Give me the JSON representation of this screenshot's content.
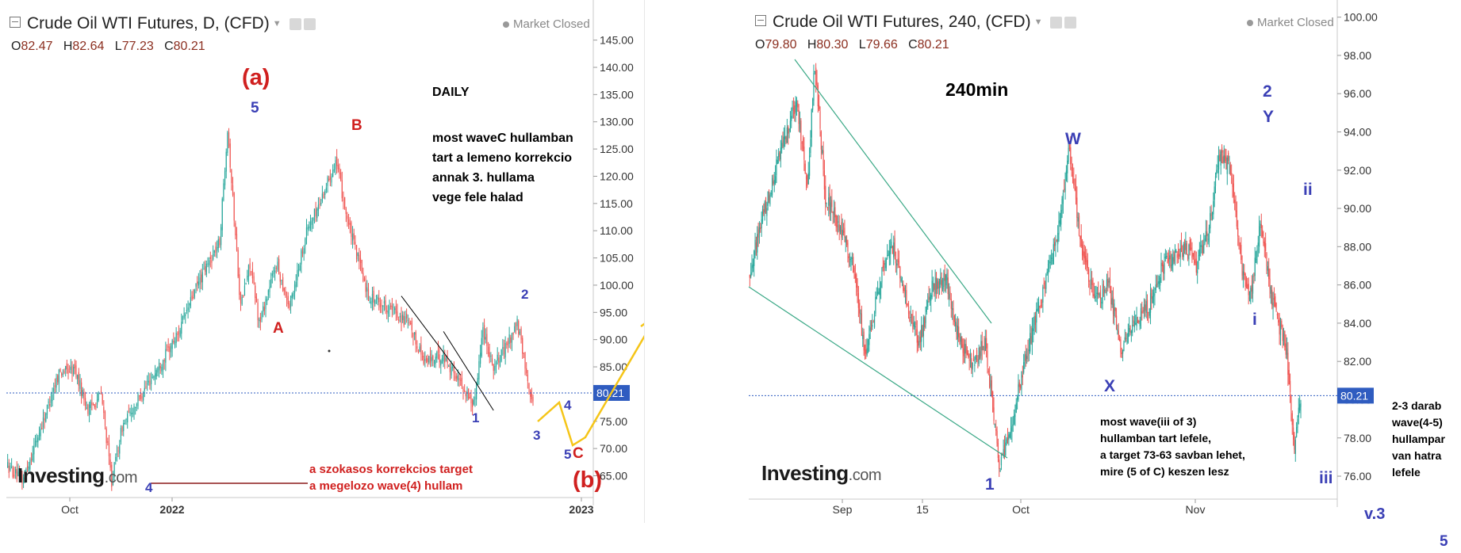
{
  "left": {
    "title": "Crude Oil WTI Futures, D, (CFD)",
    "status": "Market Closed",
    "ohlc": {
      "o_label": "O",
      "o": "82.47",
      "h_label": "H",
      "h": "82.64",
      "l_label": "L",
      "l": "77.23",
      "c_label": "C",
      "c": "80.21"
    },
    "last_price": "80.21",
    "logo": {
      "main": "Investing",
      "suffix": ".com"
    },
    "note_title": "DAILY",
    "note_lines": [
      "most waveC hullamban",
      "tart a lemeno korrekcio",
      "annak 3. hullama",
      "vege fele halad"
    ],
    "target_lines": [
      "a szokasos korrekcios target",
      "a megelozo wave(4) hullam"
    ],
    "labels": {
      "a": "(a)",
      "b": "(b)",
      "w5": "5",
      "B": "B",
      "A": "A",
      "w2": "2",
      "w1": "1",
      "w3": "3",
      "w4": "4",
      "w5c": "5",
      "C": "C",
      "w4low": "4"
    }
  },
  "right": {
    "title": "Crude Oil WTI Futures, 240, (CFD)",
    "status": "Market Closed",
    "ohlc": {
      "o_label": "O",
      "o": "79.80",
      "h_label": "H",
      "h": "80.30",
      "l_label": "L",
      "l": "79.66",
      "c_label": "C",
      "c": "80.21"
    },
    "last_price": "80.21",
    "logo": {
      "main": "Investing",
      "suffix": ".com"
    },
    "timeframe": "240min",
    "note_lines": [
      "most wave(iii of 3)",
      "hullamban tart lefele,",
      "a target 73-63 savban lehet,",
      "mire (5 of C) keszen lesz"
    ],
    "side_note": [
      "2-3 darab",
      "wave(4-5)",
      "hullampar",
      "van hatra",
      "lefele"
    ],
    "labels": {
      "W": "W",
      "X": "X",
      "Y": "Y",
      "w1": "1",
      "w2": "2",
      "ii": "ii",
      "i": "i",
      "iii": "iii"
    },
    "version": "v.3"
  },
  "page_number": "5",
  "colors": {
    "up": "#26a69a",
    "down": "#ef5350",
    "wave_red": "#d0201f",
    "wave_blue": "#3a3fb5",
    "projection": "#f5c518",
    "trend_green": "#3aa886",
    "price_line": "#2f5cc0",
    "price_box": "#2f5cc0"
  },
  "chart_data": [
    {
      "type": "candlestick",
      "title": "Crude Oil WTI Futures, D, (CFD)",
      "ylim": [
        61,
        148
      ],
      "yticks": [
        "145.00",
        "140.00",
        "135.00",
        "130.00",
        "125.00",
        "120.00",
        "115.00",
        "110.00",
        "105.00",
        "100.00",
        "95.00",
        "90.00",
        "85.00",
        "80.00",
        "75.00",
        "70.00",
        "65.00"
      ],
      "yvals": [
        145,
        140,
        135,
        130,
        125,
        120,
        115,
        110,
        105,
        100,
        95,
        90,
        85,
        80,
        75,
        70,
        65
      ],
      "xticks": [
        "Oct",
        "2022",
        "2023"
      ],
      "last": 80.21,
      "waypoints": [
        [
          0,
          67
        ],
        [
          12,
          64
        ],
        [
          25,
          73
        ],
        [
          40,
          84
        ],
        [
          52,
          84.5
        ],
        [
          62,
          77
        ],
        [
          72,
          80
        ],
        [
          80,
          64
        ],
        [
          88,
          74
        ],
        [
          100,
          79
        ],
        [
          118,
          86
        ],
        [
          130,
          91
        ],
        [
          145,
          100
        ],
        [
          162,
          108
        ],
        [
          168,
          129
        ],
        [
          178,
          96
        ],
        [
          185,
          104
        ],
        [
          192,
          93
        ],
        [
          205,
          104
        ],
        [
          215,
          96
        ],
        [
          228,
          110
        ],
        [
          238,
          115
        ],
        [
          250,
          123
        ],
        [
          260,
          111
        ],
        [
          275,
          98
        ],
        [
          290,
          96
        ],
        [
          305,
          93
        ],
        [
          318,
          86
        ],
        [
          332,
          87
        ],
        [
          345,
          82
        ],
        [
          355,
          78
        ],
        [
          362,
          92
        ],
        [
          370,
          85
        ],
        [
          378,
          88
        ],
        [
          388,
          93
        ],
        [
          395,
          84
        ],
        [
          400,
          78
        ]
      ]
    },
    {
      "type": "candlestick",
      "title": "Crude Oil WTI Futures, 240, (CFD)",
      "ylim": [
        74.8,
        100.4
      ],
      "yticks": [
        "100.00",
        "98.00",
        "96.00",
        "94.00",
        "92.00",
        "90.00",
        "88.00",
        "86.00",
        "84.00",
        "82.00",
        "80.00",
        "78.00",
        "76.00"
      ],
      "yvals": [
        100,
        98,
        96,
        94,
        92,
        90,
        88,
        86,
        84,
        82,
        80,
        78,
        76
      ],
      "xticks": [
        "Sep",
        "15",
        "Oct",
        "Nov"
      ],
      "last": 80.21,
      "waypoints": [
        [
          0,
          86.5
        ],
        [
          15,
          90
        ],
        [
          30,
          93
        ],
        [
          45,
          95.6
        ],
        [
          55,
          91
        ],
        [
          62,
          97.6
        ],
        [
          72,
          90.5
        ],
        [
          85,
          89
        ],
        [
          98,
          87
        ],
        [
          110,
          82
        ],
        [
          122,
          86
        ],
        [
          135,
          88
        ],
        [
          148,
          85
        ],
        [
          160,
          83
        ],
        [
          172,
          85.8
        ],
        [
          185,
          86.5
        ],
        [
          198,
          83
        ],
        [
          210,
          82
        ],
        [
          222,
          83
        ],
        [
          235,
          76.5
        ],
        [
          245,
          78
        ],
        [
          255,
          81
        ],
        [
          268,
          84
        ],
        [
          282,
          87
        ],
        [
          293,
          89.5
        ],
        [
          300,
          93.4
        ],
        [
          312,
          88
        ],
        [
          325,
          85
        ],
        [
          338,
          86
        ],
        [
          350,
          82.6
        ],
        [
          362,
          84
        ],
        [
          375,
          85
        ],
        [
          388,
          87
        ],
        [
          400,
          87.5
        ],
        [
          410,
          88
        ],
        [
          420,
          87
        ],
        [
          432,
          89
        ],
        [
          442,
          92.8
        ],
        [
          452,
          92
        ],
        [
          462,
          87
        ],
        [
          470,
          85.2
        ],
        [
          480,
          89.3
        ],
        [
          492,
          85
        ],
        [
          505,
          82.5
        ],
        [
          512,
          77.2
        ],
        [
          518,
          80.2
        ]
      ]
    }
  ]
}
